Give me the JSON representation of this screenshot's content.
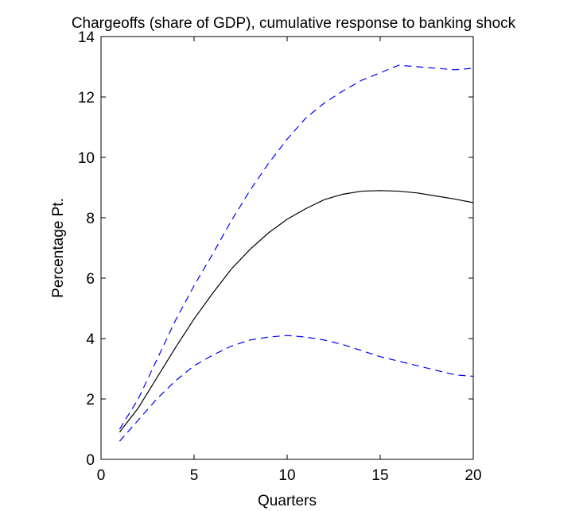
{
  "chart_data": {
    "type": "line",
    "title": "Chargeoffs (share of GDP), cumulative response to banking shock",
    "xlabel": "Quarters",
    "ylabel": "Percentage Pt.",
    "xlim": [
      0,
      20
    ],
    "ylim": [
      0,
      14
    ],
    "xticks": [
      0,
      5,
      10,
      15,
      20
    ],
    "yticks": [
      0,
      2,
      4,
      6,
      8,
      10,
      12,
      14
    ],
    "grid": false,
    "legend": "none",
    "x": [
      1,
      2,
      3,
      4,
      5,
      6,
      7,
      8,
      9,
      10,
      11,
      12,
      13,
      14,
      15,
      16,
      17,
      18,
      19,
      20
    ],
    "series": [
      {
        "style": "solid",
        "color": "#000000",
        "values": [
          0.9,
          1.7,
          2.7,
          3.7,
          4.65,
          5.5,
          6.3,
          6.95,
          7.5,
          7.95,
          8.3,
          8.6,
          8.78,
          8.88,
          8.9,
          8.88,
          8.82,
          8.72,
          8.62,
          8.5
        ]
      },
      {
        "style": "dashed",
        "color": "#0000ff",
        "values": [
          1.0,
          2.0,
          3.3,
          4.6,
          5.75,
          6.8,
          7.9,
          8.9,
          9.8,
          10.6,
          11.3,
          11.8,
          12.2,
          12.55,
          12.8,
          13.05,
          13.0,
          12.95,
          12.9,
          12.95
        ]
      },
      {
        "style": "dashed",
        "color": "#0000ff",
        "values": [
          0.6,
          1.3,
          2.0,
          2.6,
          3.1,
          3.45,
          3.75,
          3.95,
          4.05,
          4.1,
          4.05,
          3.95,
          3.8,
          3.6,
          3.4,
          3.25,
          3.1,
          2.95,
          2.8,
          2.75
        ]
      }
    ]
  }
}
